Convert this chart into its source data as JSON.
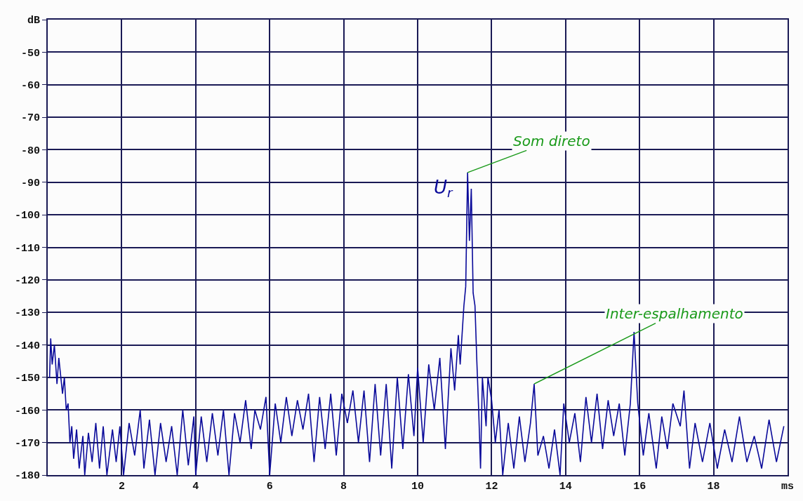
{
  "chart_data": {
    "type": "line",
    "xlim": [
      0,
      20
    ],
    "ylim": [
      -180,
      -40
    ],
    "xticks": [
      2,
      4,
      6,
      8,
      10,
      12,
      14,
      16,
      18,
      {
        "value": 20,
        "label": "ms"
      }
    ],
    "yticks": [
      {
        "value": -40,
        "label": "dB"
      },
      -50,
      -60,
      -70,
      -80,
      -90,
      -100,
      -110,
      -120,
      -130,
      -140,
      -150,
      -160,
      -170,
      -180
    ],
    "grid": true,
    "marker": "none",
    "line_style": "solid",
    "series": [
      {
        "color": "#0a0a9a",
        "x": [
          0.05,
          0.08,
          0.12,
          0.18,
          0.25,
          0.3,
          0.4,
          0.45,
          0.5,
          0.55,
          0.6,
          0.65,
          0.7,
          0.78,
          0.85,
          0.95,
          1.0,
          1.1,
          1.2,
          1.3,
          1.4,
          1.5,
          1.6,
          1.75,
          1.85,
          1.95,
          2.05,
          2.2,
          2.35,
          2.5,
          2.6,
          2.75,
          2.9,
          3.05,
          3.2,
          3.35,
          3.5,
          3.65,
          3.8,
          3.95,
          4.0,
          4.15,
          4.3,
          4.45,
          4.6,
          4.75,
          4.9,
          5.05,
          5.2,
          5.35,
          5.5,
          5.6,
          5.75,
          5.9,
          6.0,
          6.15,
          6.3,
          6.45,
          6.6,
          6.75,
          6.9,
          7.05,
          7.2,
          7.35,
          7.5,
          7.65,
          7.8,
          7.95,
          8.1,
          8.25,
          8.4,
          8.55,
          8.7,
          8.85,
          9.0,
          9.15,
          9.3,
          9.45,
          9.6,
          9.75,
          9.9,
          10.0,
          10.15,
          10.3,
          10.45,
          10.6,
          10.75,
          10.9,
          11.0,
          11.1,
          11.15,
          11.25,
          11.3,
          11.35,
          11.4,
          11.45,
          11.5,
          11.55,
          11.6,
          11.65,
          11.7,
          11.75,
          11.85,
          11.9,
          12.0,
          12.1,
          12.2,
          12.3,
          12.45,
          12.6,
          12.75,
          12.9,
          13.05,
          13.15,
          13.25,
          13.4,
          13.55,
          13.7,
          13.85,
          13.95,
          14.1,
          14.25,
          14.4,
          14.55,
          14.7,
          14.85,
          15.0,
          15.15,
          15.3,
          15.45,
          15.6,
          15.75,
          15.85,
          15.95,
          16.1,
          16.25,
          16.45,
          16.6,
          16.75,
          16.9,
          17.1,
          17.2,
          17.35,
          17.5,
          17.7,
          17.9,
          18.1,
          18.3,
          18.5,
          18.7,
          18.9,
          19.1,
          19.3,
          19.5,
          19.7,
          19.9
        ],
        "values": [
          -150,
          -138,
          -146,
          -140,
          -152,
          -144,
          -155,
          -150,
          -160,
          -158,
          -170,
          -165,
          -175,
          -166,
          -178,
          -168,
          -180,
          -167,
          -176,
          -164,
          -178,
          -165,
          -180,
          -166,
          -176,
          -165,
          -180,
          -164,
          -174,
          -160,
          -178,
          -163,
          -180,
          -164,
          -176,
          -165,
          -180,
          -160,
          -177,
          -162,
          -180,
          -162,
          -176,
          -161,
          -174,
          -160,
          -180,
          -161,
          -170,
          -157,
          -172,
          -160,
          -166,
          -156,
          -180,
          -158,
          -170,
          -156,
          -168,
          -157,
          -166,
          -155,
          -176,
          -156,
          -172,
          -155,
          -174,
          -155,
          -164,
          -154,
          -170,
          -154,
          -176,
          -152,
          -174,
          -152,
          -178,
          -150,
          -172,
          -149,
          -168,
          -147,
          -170,
          -146,
          -160,
          -144,
          -172,
          -141,
          -154,
          -137,
          -146,
          -128,
          -122,
          -87,
          -108,
          -92,
          -124,
          -128,
          -145,
          -160,
          -178,
          -150,
          -165,
          -150,
          -157,
          -170,
          -160,
          -180,
          -164,
          -178,
          -162,
          -176,
          -164,
          -152,
          -174,
          -168,
          -178,
          -166,
          -180,
          -158,
          -170,
          -161,
          -176,
          -156,
          -170,
          -155,
          -172,
          -157,
          -168,
          -158,
          -174,
          -158,
          -136,
          -158,
          -174,
          -161,
          -178,
          -162,
          -172,
          -158,
          -165,
          -154,
          -178,
          -164,
          -176,
          -164,
          -178,
          -166,
          -176,
          -162,
          -176,
          -168,
          -178,
          -163,
          -176,
          -165
        ]
      }
    ],
    "annotations": [
      {
        "text": "Som direto",
        "x": 11.35,
        "y": -87
      },
      {
        "text": "Inter-espalhamento",
        "x": 13.15,
        "y": -152
      },
      "U$_{r}$"
    ]
  }
}
